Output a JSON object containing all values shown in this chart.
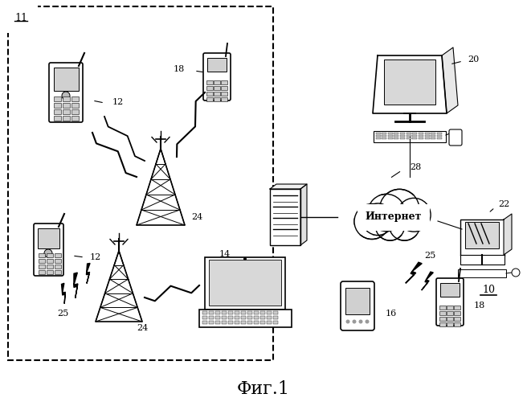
{
  "title": "Фиг.1",
  "title_fontsize": 16,
  "background_color": "#ffffff",
  "fig_width": 6.56,
  "fig_height": 5.0,
  "fig_dpi": 100
}
